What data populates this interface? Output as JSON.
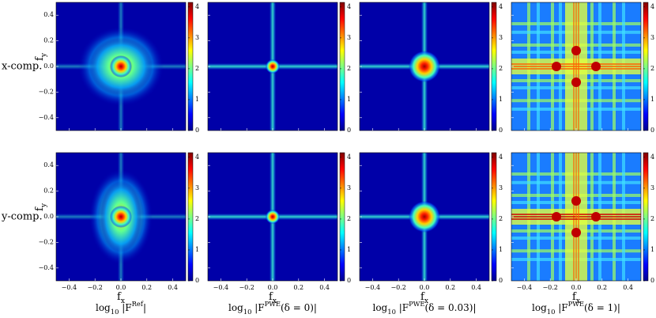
{
  "figure": {
    "rows": [
      {
        "label": "x-comp."
      },
      {
        "label": "y-comp."
      }
    ],
    "columns": [
      {
        "caption": [
          {
            "text": "log"
          },
          {
            "text": "10",
            "sub": true
          },
          {
            "text": " |F"
          },
          {
            "text": "Ref",
            "sup": true
          },
          {
            "text": "|"
          }
        ]
      },
      {
        "caption": [
          {
            "text": "log"
          },
          {
            "text": "10",
            "sub": true
          },
          {
            "text": " |F"
          },
          {
            "text": "PWE",
            "sup": true
          },
          {
            "text": "(δ = 0)|"
          }
        ]
      },
      {
        "caption": [
          {
            "text": "log"
          },
          {
            "text": "10",
            "sub": true
          },
          {
            "text": " |F"
          },
          {
            "text": "PWE",
            "sup": true
          },
          {
            "text": "(δ = 0.03)|"
          }
        ]
      },
      {
        "caption": [
          {
            "text": "log"
          },
          {
            "text": "10",
            "sub": true
          },
          {
            "text": " |F"
          },
          {
            "text": "PWE",
            "sup": true
          },
          {
            "text": "(δ = 1)|"
          }
        ]
      }
    ],
    "xlabel": [
      {
        "text": "f"
      },
      {
        "text": "x",
        "sub": true
      }
    ],
    "ylabel": [
      {
        "text": "f"
      },
      {
        "text": "y",
        "sub": true
      }
    ],
    "xlim": [
      -0.5,
      0.5
    ],
    "ylim": [
      -0.5,
      0.5
    ],
    "xticks": [
      {
        "value": -0.4,
        "label": "−0.4"
      },
      {
        "value": -0.2,
        "label": "−0.2"
      },
      {
        "value": 0,
        "label": "0.0"
      },
      {
        "value": 0.2,
        "label": "0.2"
      },
      {
        "value": 0.4,
        "label": "0.4"
      }
    ],
    "yticks": [
      {
        "value": -0.4,
        "label": "−0.4"
      },
      {
        "value": -0.2,
        "label": "−0.2"
      },
      {
        "value": 0,
        "label": "0.0"
      },
      {
        "value": 0.2,
        "label": "0.2"
      },
      {
        "value": 0.4,
        "label": "0.4"
      }
    ],
    "colorbar": {
      "lim": [
        0,
        4.15
      ],
      "ticks": [
        0,
        1,
        2,
        3,
        4
      ]
    }
  }
}
